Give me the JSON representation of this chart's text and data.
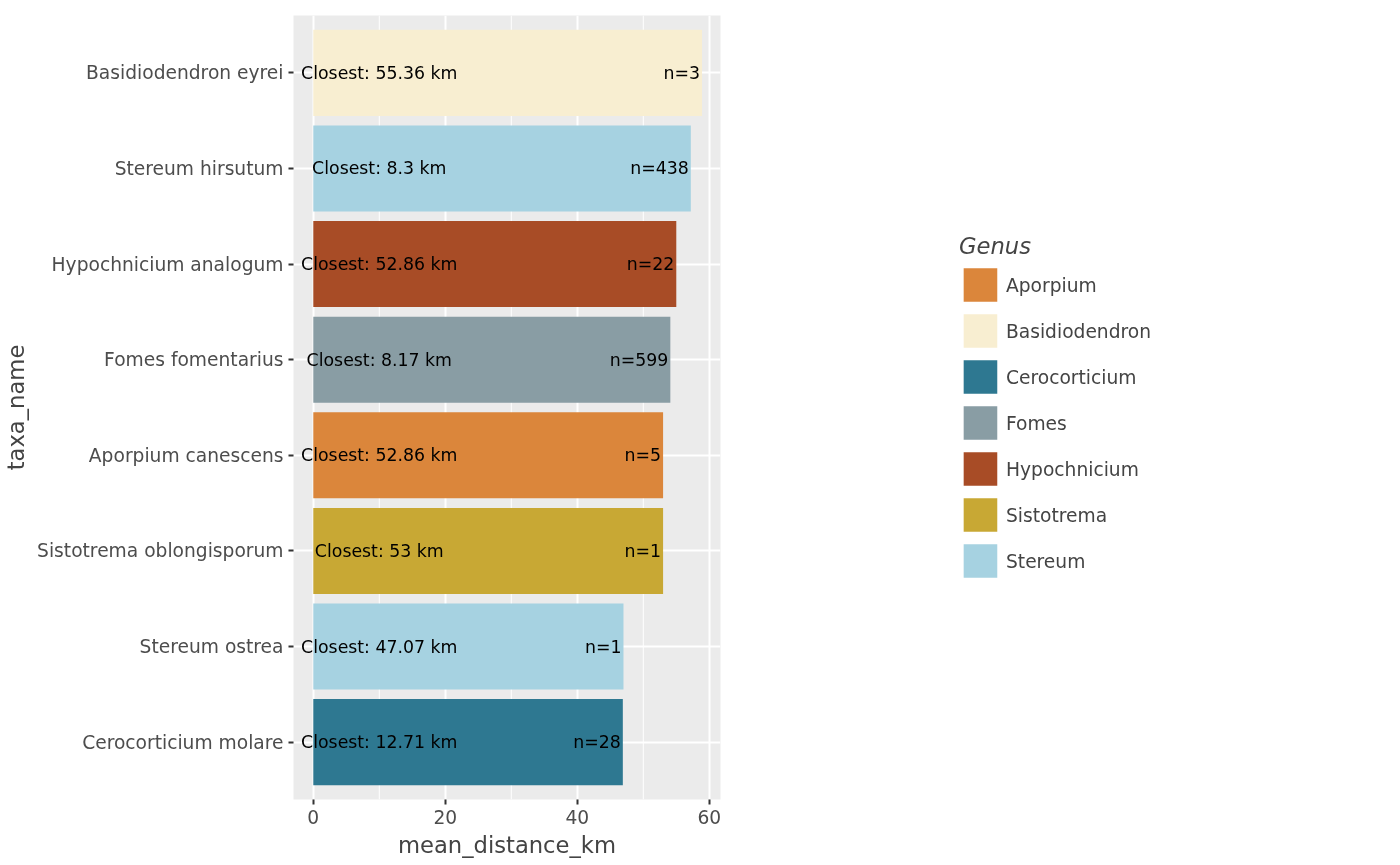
{
  "chart_data": {
    "type": "bar",
    "orientation": "horizontal",
    "xlabel": "mean_distance_km",
    "ylabel": "taxa_name",
    "legend_title": "Genus",
    "legend": "right",
    "grid": true,
    "categories": [
      "Basidiodendron eyrei",
      "Stereum hirsutum",
      "Hypochnicium analogum",
      "Fomes fomentarius",
      "Aporpium canescens",
      "Sistotrema oblongisporum",
      "Stereum ostrea",
      "Cerocorticium molare"
    ],
    "xlim": [
      -3,
      61.7
    ],
    "xticks": [
      0,
      20,
      40,
      60
    ],
    "series": [
      {
        "name": "Aporpium",
        "color": "#db863b",
        "values": [
          null,
          null,
          null,
          null,
          53.0,
          null,
          null,
          null
        ]
      },
      {
        "name": "Basidiodendron",
        "color": "#f8eed1",
        "values": [
          58.9,
          null,
          null,
          null,
          null,
          null,
          null,
          null
        ]
      },
      {
        "name": "Cerocorticium",
        "color": "#2e7891",
        "values": [
          null,
          null,
          null,
          null,
          null,
          null,
          null,
          46.9
        ]
      },
      {
        "name": "Fomes",
        "color": "#899da4",
        "values": [
          null,
          null,
          null,
          54.1,
          null,
          null,
          null,
          null
        ]
      },
      {
        "name": "Hypochnicium",
        "color": "#a84c26",
        "values": [
          null,
          null,
          55.0,
          null,
          null,
          null,
          null,
          null
        ]
      },
      {
        "name": "Sistotrema",
        "color": "#c8a834",
        "values": [
          null,
          null,
          null,
          null,
          null,
          53.0,
          null,
          null
        ]
      },
      {
        "name": "Stereum",
        "color": "#a6d2e1",
        "values": [
          null,
          57.2,
          null,
          null,
          null,
          null,
          47.0,
          null
        ]
      }
    ],
    "annotations": [
      {
        "text": "Closest: 55.36 km",
        "x": 10,
        "y": "Basidiodendron eyrei"
      },
      {
        "text": "Closest: 8.3 km",
        "x": 10,
        "y": "Stereum hirsutum"
      },
      {
        "text": "Closest: 52.86 km",
        "x": 10,
        "y": "Hypochnicium analogum"
      },
      {
        "text": "Closest: 8.17 km",
        "x": 10,
        "y": "Fomes fomentarius"
      },
      {
        "text": "Closest: 52.86 km",
        "x": 10,
        "y": "Aporpium canescens"
      },
      {
        "text": "Closest: 53 km",
        "x": 10,
        "y": "Sistotrema oblongisporum"
      },
      {
        "text": "Closest: 47.07 km",
        "x": 10,
        "y": "Stereum ostrea"
      },
      {
        "text": "Closest: 12.71 km",
        "x": 10,
        "y": "Cerocorticium molare"
      },
      {
        "text": "n=3",
        "x": 58.9,
        "y": "Basidiodendron eyrei"
      },
      {
        "text": "n=438",
        "x": 57.2,
        "y": "Stereum hirsutum"
      },
      {
        "text": "n=22",
        "x": 55.0,
        "y": "Hypochnicium analogum"
      },
      {
        "text": "n=599",
        "x": 54.1,
        "y": "Fomes fomentarius"
      },
      {
        "text": "n=5",
        "x": 53.0,
        "y": "Aporpium canescens"
      },
      {
        "text": "n=1",
        "x": 53.0,
        "y": "Sistotrema oblongisporum"
      },
      {
        "text": "n=1",
        "x": 47.0,
        "y": "Stereum ostrea"
      },
      {
        "text": "n=28",
        "x": 46.9,
        "y": "Cerocorticium molare"
      }
    ]
  }
}
